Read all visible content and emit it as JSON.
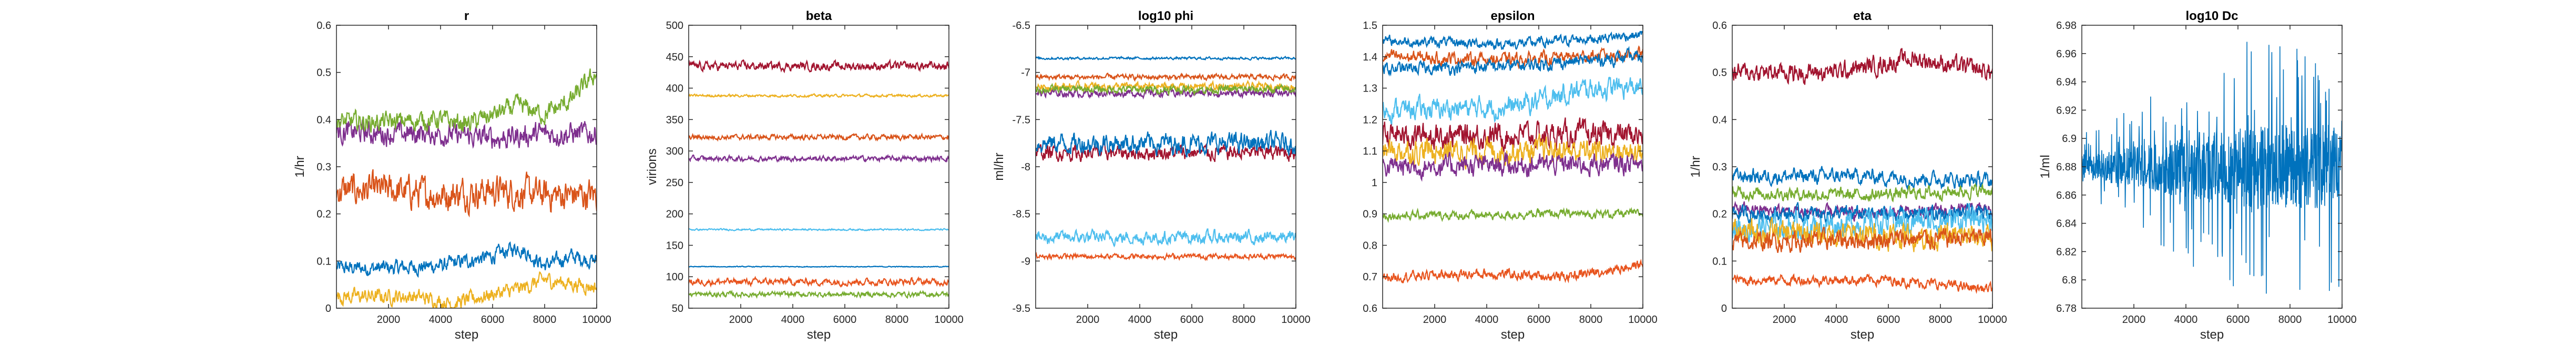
{
  "x_tick_labels": [
    "2000",
    "4000",
    "6000",
    "8000",
    "10000"
  ],
  "chart_data": [
    {
      "type": "line",
      "title": "r",
      "xlabel": "step",
      "ylabel": "1/hr",
      "xlim": [
        0,
        10000
      ],
      "ylim": [
        0,
        0.6
      ],
      "yticks": [
        "0",
        "0.1",
        "0.2",
        "0.3",
        "0.4",
        "0.5",
        "0.6"
      ],
      "grid": false,
      "series": [
        {
          "color": "#0072BD",
          "values": [
            [
              0,
              0.085
            ],
            [
              2000,
              0.085
            ],
            [
              4000,
              0.09
            ],
            [
              5000,
              0.1
            ],
            [
              6000,
              0.11
            ],
            [
              7000,
              0.13
            ],
            [
              8000,
              0.09
            ],
            [
              9000,
              0.11
            ],
            [
              10000,
              0.1
            ]
          ],
          "noise": 0.012
        },
        {
          "color": "#D95319",
          "values": [
            [
              0,
              0.25
            ],
            [
              2000,
              0.25
            ],
            [
              4000,
              0.24
            ],
            [
              6000,
              0.25
            ],
            [
              8000,
              0.24
            ],
            [
              10000,
              0.24
            ]
          ],
          "noise": 0.025
        },
        {
          "color": "#EDB120",
          "values": [
            [
              0,
              0.025
            ],
            [
              3000,
              0.025
            ],
            [
              4500,
              0.01
            ],
            [
              6000,
              0.03
            ],
            [
              7000,
              0.04
            ],
            [
              8000,
              0.06
            ],
            [
              10000,
              0.045
            ]
          ],
          "noise": 0.012
        },
        {
          "color": "#7E2F8E",
          "values": [
            [
              0,
              0.375
            ],
            [
              2000,
              0.37
            ],
            [
              4000,
              0.37
            ],
            [
              6000,
              0.36
            ],
            [
              8000,
              0.37
            ],
            [
              10000,
              0.37
            ]
          ],
          "noise": 0.018
        },
        {
          "color": "#77AC30",
          "values": [
            [
              0,
              0.395
            ],
            [
              2000,
              0.395
            ],
            [
              4000,
              0.4
            ],
            [
              5000,
              0.39
            ],
            [
              6000,
              0.41
            ],
            [
              7000,
              0.43
            ],
            [
              8000,
              0.41
            ],
            [
              9000,
              0.44
            ],
            [
              10000,
              0.5
            ]
          ],
          "noise": 0.015
        }
      ]
    },
    {
      "type": "line",
      "title": "beta",
      "xlabel": "step",
      "ylabel": "virions",
      "xlim": [
        0,
        10000
      ],
      "ylim": [
        50,
        500
      ],
      "yticks": [
        "50",
        "100",
        "150",
        "200",
        "250",
        "300",
        "350",
        "400",
        "450",
        "500"
      ],
      "grid": false,
      "series": [
        {
          "color": "#0072BD",
          "values": [
            [
              0,
              116
            ],
            [
              10000,
              116
            ]
          ],
          "noise": 0.5
        },
        {
          "color": "#D95319",
          "values": [
            [
              0,
              322
            ],
            [
              10000,
              322
            ]
          ],
          "noise": 3
        },
        {
          "color": "#EDB120",
          "values": [
            [
              0,
              388
            ],
            [
              10000,
              388
            ]
          ],
          "noise": 1.5
        },
        {
          "color": "#7E2F8E",
          "values": [
            [
              0,
              288
            ],
            [
              10000,
              288
            ]
          ],
          "noise": 3
        },
        {
          "color": "#77AC30",
          "values": [
            [
              0,
              72
            ],
            [
              10000,
              72
            ]
          ],
          "noise": 3
        },
        {
          "color": "#4DBEEE",
          "values": [
            [
              0,
              175
            ],
            [
              10000,
              175
            ]
          ],
          "noise": 1
        },
        {
          "color": "#A2142F",
          "values": [
            [
              0,
              435
            ],
            [
              10000,
              435
            ]
          ],
          "noise": 5
        },
        {
          "color": "#E8541E",
          "values": [
            [
              0,
              92
            ],
            [
              10000,
              92
            ]
          ],
          "noise": 4
        }
      ]
    },
    {
      "type": "line",
      "title": "log10 phi",
      "xlabel": "step",
      "ylabel": "ml/hr",
      "xlim": [
        0,
        10000
      ],
      "ylim": [
        -9.5,
        -6.5
      ],
      "yticks": [
        "-9.5",
        "-9",
        "-8.5",
        "-8",
        "-7.5",
        "-7",
        "-6.5"
      ],
      "grid": false,
      "series": [
        {
          "color": "#0072BD",
          "values": [
            [
              0,
              -6.85
            ],
            [
              5000,
              -6.85
            ],
            [
              10000,
              -6.85
            ]
          ],
          "noise": 0.01
        },
        {
          "color": "#D95319",
          "values": [
            [
              0,
              -7.05
            ],
            [
              5000,
              -7.05
            ],
            [
              10000,
              -7.05
            ]
          ],
          "noise": 0.02
        },
        {
          "color": "#EDB120",
          "values": [
            [
              0,
              -7.15
            ],
            [
              10000,
              -7.15
            ]
          ],
          "noise": 0.03
        },
        {
          "color": "#7E2F8E",
          "values": [
            [
              0,
              -7.22
            ],
            [
              10000,
              -7.22
            ]
          ],
          "noise": 0.03
        },
        {
          "color": "#77AC30",
          "values": [
            [
              0,
              -7.18
            ],
            [
              10000,
              -7.18
            ]
          ],
          "noise": 0.03
        },
        {
          "color": "#A2142F",
          "values": [
            [
              0,
              -7.85
            ],
            [
              10000,
              -7.85
            ]
          ],
          "noise": 0.06
        },
        {
          "color": "#0072BD",
          "values": [
            [
              0,
              -7.75
            ],
            [
              10000,
              -7.75
            ]
          ],
          "noise": 0.08
        },
        {
          "color": "#4DBEEE",
          "values": [
            [
              0,
              -8.75
            ],
            [
              10000,
              -8.75
            ]
          ],
          "noise": 0.05
        },
        {
          "color": "#E8541E",
          "values": [
            [
              0,
              -8.95
            ],
            [
              10000,
              -8.95
            ]
          ],
          "noise": 0.02
        }
      ]
    },
    {
      "type": "line",
      "title": "epsilon",
      "xlabel": "step",
      "ylabel": "",
      "xlim": [
        0,
        10000
      ],
      "ylim": [
        0.6,
        1.5
      ],
      "yticks": [
        "0.6",
        "0.7",
        "0.8",
        "0.9",
        "1",
        "1.1",
        "1.2",
        "1.3",
        "1.4",
        "1.5"
      ],
      "grid": false,
      "series": [
        {
          "color": "#0072BD",
          "values": [
            [
              0,
              1.45
            ],
            [
              5000,
              1.44
            ],
            [
              10000,
              1.47
            ]
          ],
          "noise": 0.012
        },
        {
          "color": "#D95319",
          "values": [
            [
              0,
              1.4
            ],
            [
              5000,
              1.39
            ],
            [
              10000,
              1.41
            ]
          ],
          "noise": 0.015
        },
        {
          "color": "#0072BD",
          "values": [
            [
              0,
              1.36
            ],
            [
              5000,
              1.37
            ],
            [
              10000,
              1.4
            ]
          ],
          "noise": 0.015
        },
        {
          "color": "#4DBEEE",
          "values": [
            [
              0,
              1.23
            ],
            [
              5000,
              1.24
            ],
            [
              8000,
              1.3
            ],
            [
              10000,
              1.3
            ]
          ],
          "noise": 0.025
        },
        {
          "color": "#A2142F",
          "values": [
            [
              0,
              1.15
            ],
            [
              10000,
              1.15
            ]
          ],
          "noise": 0.03
        },
        {
          "color": "#EDB120",
          "values": [
            [
              0,
              1.1
            ],
            [
              10000,
              1.1
            ]
          ],
          "noise": 0.03
        },
        {
          "color": "#7E2F8E",
          "values": [
            [
              0,
              1.05
            ],
            [
              10000,
              1.06
            ]
          ],
          "noise": 0.025
        },
        {
          "color": "#77AC30",
          "values": [
            [
              0,
              0.895
            ],
            [
              4000,
              0.895
            ],
            [
              6000,
              0.9
            ],
            [
              10000,
              0.9
            ]
          ],
          "noise": 0.01
        },
        {
          "color": "#E8541E",
          "values": [
            [
              0,
              0.7
            ],
            [
              4000,
              0.71
            ],
            [
              7000,
              0.7
            ],
            [
              10000,
              0.74
            ]
          ],
          "noise": 0.012
        }
      ]
    },
    {
      "type": "line",
      "title": "eta",
      "xlabel": "step",
      "ylabel": "1/hr",
      "xlim": [
        0,
        10000
      ],
      "ylim": [
        0,
        0.6
      ],
      "yticks": [
        "0",
        "0.1",
        "0.2",
        "0.3",
        "0.4",
        "0.5",
        "0.6"
      ],
      "grid": false,
      "series": [
        {
          "color": "#A2142F",
          "values": [
            [
              0,
              0.5
            ],
            [
              4000,
              0.5
            ],
            [
              7000,
              0.53
            ],
            [
              10000,
              0.5
            ]
          ],
          "noise": 0.015
        },
        {
          "color": "#0072BD",
          "values": [
            [
              0,
              0.28
            ],
            [
              5000,
              0.28
            ],
            [
              10000,
              0.27
            ]
          ],
          "noise": 0.012
        },
        {
          "color": "#77AC30",
          "values": [
            [
              0,
              0.245
            ],
            [
              5000,
              0.24
            ],
            [
              10000,
              0.25
            ]
          ],
          "noise": 0.01
        },
        {
          "color": "#7E2F8E",
          "values": [
            [
              0,
              0.21
            ],
            [
              5000,
              0.2
            ],
            [
              10000,
              0.21
            ]
          ],
          "noise": 0.01
        },
        {
          "color": "#0072BD",
          "values": [
            [
              0,
              0.2
            ],
            [
              10000,
              0.2
            ]
          ],
          "noise": 0.012
        },
        {
          "color": "#4DBEEE",
          "values": [
            [
              0,
              0.17
            ],
            [
              5000,
              0.18
            ],
            [
              10000,
              0.19
            ]
          ],
          "noise": 0.02
        },
        {
          "color": "#EDB120",
          "values": [
            [
              0,
              0.16
            ],
            [
              10000,
              0.15
            ]
          ],
          "noise": 0.02
        },
        {
          "color": "#D95319",
          "values": [
            [
              0,
              0.14
            ],
            [
              10000,
              0.15
            ]
          ],
          "noise": 0.015
        },
        {
          "color": "#E8541E",
          "values": [
            [
              0,
              0.06
            ],
            [
              6000,
              0.06
            ],
            [
              10000,
              0.04
            ]
          ],
          "noise": 0.008
        }
      ]
    },
    {
      "type": "line",
      "title": "log10 Dc",
      "xlabel": "step",
      "ylabel": "1/ml",
      "xlim": [
        0,
        10000
      ],
      "ylim": [
        6.78,
        6.98
      ],
      "yticks": [
        "6.78",
        "6.8",
        "6.82",
        "6.84",
        "6.86",
        "6.88",
        "6.9",
        "6.92",
        "6.94",
        "6.96",
        "6.98"
      ],
      "grid": false,
      "series": [
        {
          "color": "#0072BD",
          "values": [
            [
              0,
              6.88
            ],
            [
              10000,
              6.88
            ]
          ],
          "noise": 0.025,
          "spiky": true
        }
      ]
    }
  ]
}
